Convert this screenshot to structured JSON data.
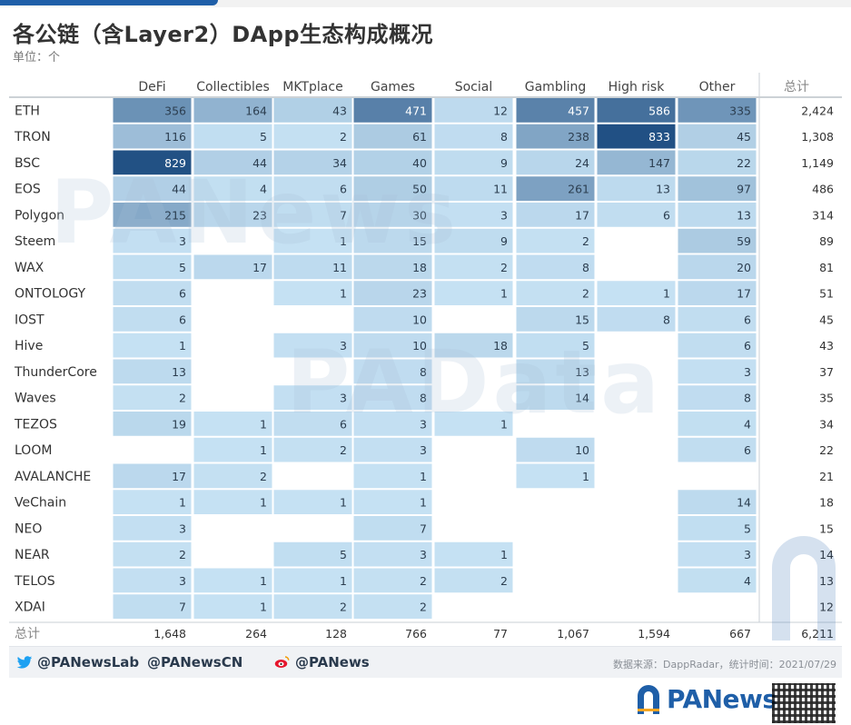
{
  "title": "各公链（含Layer2）DApp生态构成概况",
  "unit_label": "单位：个",
  "chart_data": {
    "type": "heatmap",
    "columns": [
      "DeFi",
      "Collectibles",
      "MKTplace",
      "Games",
      "Social",
      "Gambling",
      "High risk",
      "Other"
    ],
    "total_header": "总计",
    "rows": [
      {
        "chain": "ETH",
        "values": [
          356,
          164,
          43,
          471,
          12,
          457,
          586,
          335
        ],
        "total": "2,424"
      },
      {
        "chain": "TRON",
        "values": [
          116,
          5,
          2,
          61,
          8,
          238,
          833,
          45
        ],
        "total": "1,308"
      },
      {
        "chain": "BSC",
        "values": [
          829,
          44,
          34,
          40,
          9,
          24,
          147,
          22
        ],
        "total": "1,149"
      },
      {
        "chain": "EOS",
        "values": [
          44,
          4,
          6,
          50,
          11,
          261,
          13,
          97
        ],
        "total": "486"
      },
      {
        "chain": "Polygon",
        "values": [
          215,
          23,
          7,
          30,
          3,
          17,
          6,
          13
        ],
        "total": "314"
      },
      {
        "chain": "Steem",
        "values": [
          3,
          null,
          1,
          15,
          9,
          2,
          null,
          59
        ],
        "total": "89"
      },
      {
        "chain": "WAX",
        "values": [
          5,
          17,
          11,
          18,
          2,
          8,
          null,
          20
        ],
        "total": "81"
      },
      {
        "chain": "ONTOLOGY",
        "values": [
          6,
          null,
          1,
          23,
          1,
          2,
          1,
          17
        ],
        "total": "51"
      },
      {
        "chain": "IOST",
        "values": [
          6,
          null,
          null,
          10,
          null,
          15,
          8,
          6
        ],
        "total": "45"
      },
      {
        "chain": "Hive",
        "values": [
          1,
          null,
          3,
          10,
          18,
          5,
          null,
          6
        ],
        "total": "43"
      },
      {
        "chain": "ThunderCore",
        "values": [
          13,
          null,
          null,
          8,
          null,
          13,
          null,
          3
        ],
        "total": "37"
      },
      {
        "chain": "Waves",
        "values": [
          2,
          null,
          3,
          8,
          null,
          14,
          null,
          8
        ],
        "total": "35"
      },
      {
        "chain": "TEZOS",
        "values": [
          19,
          1,
          6,
          3,
          1,
          null,
          null,
          4
        ],
        "total": "34"
      },
      {
        "chain": "LOOM",
        "values": [
          null,
          1,
          2,
          3,
          null,
          10,
          null,
          6
        ],
        "total": "22"
      },
      {
        "chain": "AVALANCHE",
        "values": [
          17,
          2,
          null,
          1,
          null,
          1,
          null,
          null
        ],
        "total": "21"
      },
      {
        "chain": "VeChain",
        "values": [
          1,
          1,
          1,
          1,
          null,
          null,
          null,
          14
        ],
        "total": "18"
      },
      {
        "chain": "NEO",
        "values": [
          3,
          null,
          null,
          7,
          null,
          null,
          null,
          5
        ],
        "total": "15"
      },
      {
        "chain": "NEAR",
        "values": [
          2,
          null,
          5,
          3,
          1,
          null,
          null,
          3
        ],
        "total": "14"
      },
      {
        "chain": "TELOS",
        "values": [
          3,
          1,
          1,
          2,
          2,
          null,
          null,
          4
        ],
        "total": "13"
      },
      {
        "chain": "XDAI",
        "values": [
          7,
          1,
          2,
          2,
          null,
          null,
          null,
          null
        ],
        "total": "12"
      }
    ],
    "totals_label": "总计",
    "column_totals": [
      "1,648",
      "264",
      "128",
      "766",
      "77",
      "1,067",
      "1,594",
      "667"
    ],
    "grand_total": "6,211",
    "color_scale": {
      "low": "#c6e2f4",
      "high": "#1f4e82"
    }
  },
  "footer": {
    "twitter_1": "@PANewsLab",
    "twitter_2": "@PANewsCN",
    "weibo": "@PANews",
    "source": "数据来源：DappRadar，统计时间：2021/07/29"
  },
  "watermarks": [
    "PANews",
    "PAData"
  ],
  "brand": "PANews",
  "colors": {
    "twitter": "#1da1f2",
    "weibo": "#e6162d",
    "brand": "#1f5fa8"
  }
}
